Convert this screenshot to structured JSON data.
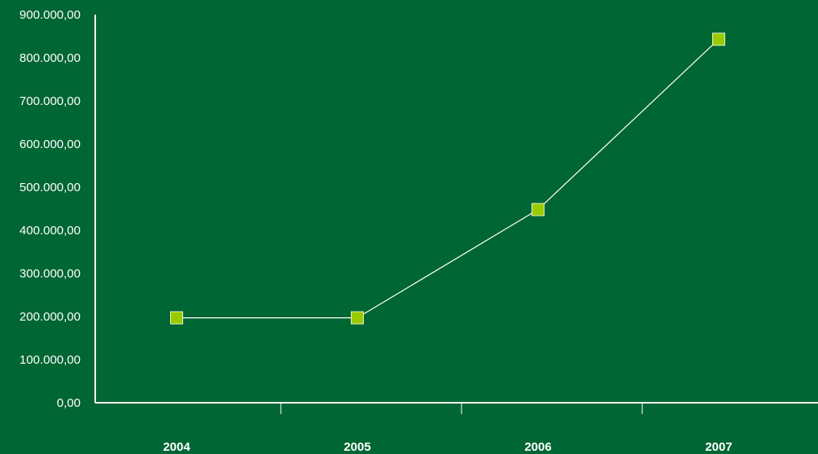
{
  "colors": {
    "background": "#006633",
    "axis": "#ffffff",
    "line": "#ffffff",
    "marker_fill": "#99cc00",
    "marker_stroke": "#e6f0c8",
    "text": "#ffffff"
  },
  "chart_data": {
    "type": "line",
    "title": "",
    "xlabel": "",
    "ylabel": "",
    "categories": [
      "2004",
      "2005",
      "2006",
      "2007"
    ],
    "series": [
      {
        "values": [
          197000,
          197000,
          448000,
          843000
        ],
        "marker": "square"
      }
    ],
    "ylim": [
      0,
      900000
    ],
    "yticks": [
      0,
      100000,
      200000,
      300000,
      400000,
      500000,
      600000,
      700000,
      800000,
      900000
    ],
    "ytick_labels": [
      "0,00",
      "100.000,00",
      "200.000,00",
      "300.000,00",
      "400.000,00",
      "500.000,00",
      "600.000,00",
      "700.000,00",
      "800.000,00",
      "900.000,00"
    ],
    "grid": false,
    "legend": "none"
  }
}
